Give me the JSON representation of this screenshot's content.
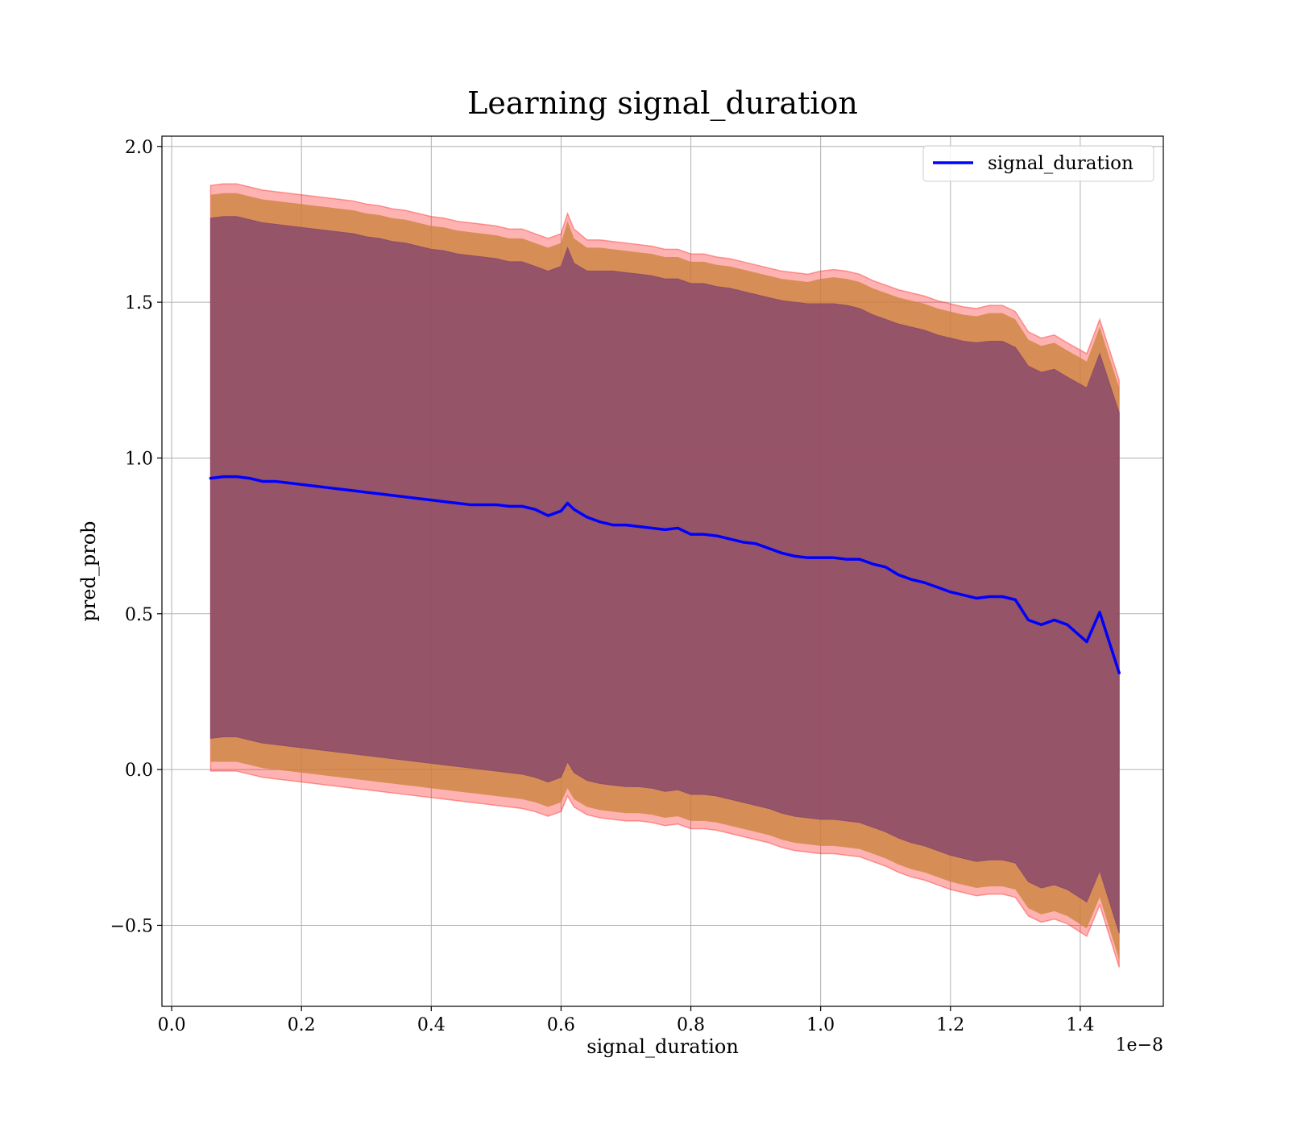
{
  "chart_data": {
    "type": "line",
    "title": "Learning signal_duration",
    "xlabel": "signal_duration",
    "ylabel": "pred_prob",
    "x_offset_label": "1e−8",
    "xlim": [
      -1.5e-10,
      1.528e-08
    ],
    "ylim": [
      -0.76,
      2.033
    ],
    "x_ticks": [
      0,
      2e-09,
      4e-09,
      6e-09,
      8e-09,
      1e-08,
      1.2e-08,
      1.4e-08
    ],
    "x_tick_labels": [
      "0.0",
      "0.2",
      "0.4",
      "0.6",
      "0.8",
      "1.0",
      "1.2",
      "1.4"
    ],
    "y_ticks": [
      -0.5,
      0.0,
      0.5,
      1.0,
      1.5,
      2.0
    ],
    "y_tick_labels": [
      "−0.5",
      "0.0",
      "0.5",
      "1.0",
      "1.5",
      "2.0"
    ],
    "grid": true,
    "legend": {
      "position": "top-right"
    },
    "colors": {
      "line": "#0000ff",
      "outer_band": "#ff0000",
      "mid_band": "#cd853f",
      "inner_band": "#8b4a6b"
    },
    "series": [
      {
        "name": "signal_duration",
        "x": [
          6e-10,
          8e-10,
          1e-09,
          1.2e-09,
          1.4e-09,
          1.6e-09,
          1.8e-09,
          2e-09,
          2.2e-09,
          2.4e-09,
          2.6e-09,
          2.8e-09,
          3e-09,
          3.2e-09,
          3.4e-09,
          3.6e-09,
          3.8e-09,
          4e-09,
          4.2e-09,
          4.4e-09,
          4.6e-09,
          4.8e-09,
          5e-09,
          5.2e-09,
          5.4e-09,
          5.6e-09,
          5.8e-09,
          6e-09,
          6.1e-09,
          6.2e-09,
          6.4e-09,
          6.6e-09,
          6.8e-09,
          7e-09,
          7.2e-09,
          7.4e-09,
          7.6e-09,
          7.8e-09,
          8e-09,
          8.2e-09,
          8.4e-09,
          8.6e-09,
          8.8e-09,
          9e-09,
          9.2e-09,
          9.4e-09,
          9.6e-09,
          9.8e-09,
          1e-08,
          1.02e-08,
          1.04e-08,
          1.06e-08,
          1.08e-08,
          1.1e-08,
          1.12e-08,
          1.14e-08,
          1.16e-08,
          1.18e-08,
          1.2e-08,
          1.22e-08,
          1.24e-08,
          1.26e-08,
          1.28e-08,
          1.3e-08,
          1.32e-08,
          1.34e-08,
          1.36e-08,
          1.38e-08,
          1.41e-08,
          1.43e-08,
          1.46e-08
        ],
        "y": [
          0.935,
          0.94,
          0.94,
          0.935,
          0.925,
          0.925,
          0.92,
          0.915,
          0.91,
          0.905,
          0.9,
          0.895,
          0.89,
          0.885,
          0.88,
          0.875,
          0.87,
          0.865,
          0.86,
          0.855,
          0.85,
          0.85,
          0.85,
          0.845,
          0.845,
          0.835,
          0.815,
          0.83,
          0.855,
          0.835,
          0.81,
          0.795,
          0.785,
          0.785,
          0.78,
          0.775,
          0.77,
          0.775,
          0.755,
          0.755,
          0.75,
          0.74,
          0.73,
          0.725,
          0.71,
          0.695,
          0.685,
          0.68,
          0.68,
          0.68,
          0.675,
          0.675,
          0.66,
          0.65,
          0.625,
          0.61,
          0.6,
          0.585,
          0.57,
          0.56,
          0.55,
          0.555,
          0.555,
          0.545,
          0.48,
          0.465,
          0.48,
          0.465,
          0.41,
          0.505,
          0.31
        ],
        "outer_upper": [
          1.875,
          1.88,
          1.88,
          1.87,
          1.86,
          1.855,
          1.85,
          1.845,
          1.84,
          1.835,
          1.83,
          1.825,
          1.815,
          1.81,
          1.8,
          1.795,
          1.785,
          1.775,
          1.77,
          1.76,
          1.755,
          1.75,
          1.745,
          1.735,
          1.735,
          1.72,
          1.705,
          1.72,
          1.785,
          1.735,
          1.7,
          1.7,
          1.695,
          1.69,
          1.685,
          1.68,
          1.67,
          1.67,
          1.655,
          1.655,
          1.645,
          1.64,
          1.63,
          1.62,
          1.61,
          1.6,
          1.595,
          1.59,
          1.6,
          1.605,
          1.6,
          1.59,
          1.57,
          1.555,
          1.54,
          1.53,
          1.52,
          1.505,
          1.495,
          1.485,
          1.48,
          1.49,
          1.49,
          1.47,
          1.405,
          1.385,
          1.395,
          1.37,
          1.335,
          1.445,
          1.25
        ],
        "outer_lower": [
          -0.005,
          -0.005,
          -0.005,
          -0.015,
          -0.025,
          -0.03,
          -0.035,
          -0.04,
          -0.045,
          -0.05,
          -0.055,
          -0.06,
          -0.065,
          -0.07,
          -0.075,
          -0.08,
          -0.085,
          -0.09,
          -0.095,
          -0.1,
          -0.105,
          -0.11,
          -0.115,
          -0.12,
          -0.125,
          -0.135,
          -0.15,
          -0.135,
          -0.085,
          -0.12,
          -0.145,
          -0.155,
          -0.16,
          -0.165,
          -0.165,
          -0.17,
          -0.18,
          -0.175,
          -0.19,
          -0.19,
          -0.195,
          -0.205,
          -0.215,
          -0.225,
          -0.235,
          -0.25,
          -0.26,
          -0.265,
          -0.27,
          -0.27,
          -0.275,
          -0.28,
          -0.295,
          -0.31,
          -0.33,
          -0.345,
          -0.355,
          -0.37,
          -0.385,
          -0.395,
          -0.405,
          -0.4,
          -0.4,
          -0.41,
          -0.47,
          -0.49,
          -0.48,
          -0.495,
          -0.535,
          -0.435,
          -0.635
        ],
        "mid_upper": [
          1.845,
          1.85,
          1.85,
          1.84,
          1.83,
          1.825,
          1.82,
          1.815,
          1.81,
          1.805,
          1.8,
          1.795,
          1.785,
          1.78,
          1.77,
          1.765,
          1.755,
          1.745,
          1.74,
          1.73,
          1.725,
          1.72,
          1.715,
          1.705,
          1.705,
          1.69,
          1.675,
          1.69,
          1.76,
          1.705,
          1.675,
          1.675,
          1.67,
          1.665,
          1.66,
          1.655,
          1.645,
          1.645,
          1.63,
          1.63,
          1.62,
          1.615,
          1.605,
          1.595,
          1.585,
          1.575,
          1.57,
          1.565,
          1.575,
          1.58,
          1.575,
          1.565,
          1.545,
          1.53,
          1.515,
          1.505,
          1.495,
          1.48,
          1.47,
          1.46,
          1.455,
          1.465,
          1.465,
          1.445,
          1.38,
          1.36,
          1.37,
          1.345,
          1.31,
          1.42,
          1.225
        ],
        "mid_lower": [
          0.025,
          0.025,
          0.025,
          0.015,
          0.005,
          0.0,
          -0.005,
          -0.01,
          -0.015,
          -0.02,
          -0.025,
          -0.03,
          -0.035,
          -0.04,
          -0.045,
          -0.05,
          -0.055,
          -0.06,
          -0.065,
          -0.07,
          -0.075,
          -0.08,
          -0.085,
          -0.09,
          -0.095,
          -0.105,
          -0.12,
          -0.105,
          -0.06,
          -0.095,
          -0.12,
          -0.13,
          -0.135,
          -0.14,
          -0.14,
          -0.145,
          -0.155,
          -0.15,
          -0.165,
          -0.165,
          -0.17,
          -0.18,
          -0.19,
          -0.2,
          -0.21,
          -0.225,
          -0.235,
          -0.24,
          -0.245,
          -0.245,
          -0.25,
          -0.255,
          -0.27,
          -0.285,
          -0.305,
          -0.32,
          -0.33,
          -0.345,
          -0.36,
          -0.37,
          -0.38,
          -0.375,
          -0.375,
          -0.385,
          -0.445,
          -0.465,
          -0.455,
          -0.47,
          -0.51,
          -0.41,
          -0.61
        ],
        "inner_upper": [
          1.77,
          1.775,
          1.775,
          1.765,
          1.755,
          1.75,
          1.745,
          1.74,
          1.735,
          1.73,
          1.725,
          1.72,
          1.71,
          1.705,
          1.695,
          1.69,
          1.68,
          1.67,
          1.665,
          1.655,
          1.65,
          1.645,
          1.64,
          1.63,
          1.63,
          1.615,
          1.6,
          1.615,
          1.675,
          1.625,
          1.6,
          1.6,
          1.6,
          1.595,
          1.59,
          1.585,
          1.575,
          1.575,
          1.56,
          1.56,
          1.55,
          1.545,
          1.535,
          1.525,
          1.515,
          1.505,
          1.5,
          1.495,
          1.495,
          1.495,
          1.49,
          1.48,
          1.46,
          1.445,
          1.43,
          1.42,
          1.41,
          1.395,
          1.385,
          1.375,
          1.37,
          1.375,
          1.375,
          1.355,
          1.295,
          1.275,
          1.285,
          1.26,
          1.225,
          1.335,
          1.145
        ],
        "inner_lower": [
          0.1,
          0.105,
          0.105,
          0.095,
          0.085,
          0.08,
          0.075,
          0.07,
          0.065,
          0.06,
          0.055,
          0.05,
          0.045,
          0.04,
          0.035,
          0.03,
          0.025,
          0.02,
          0.015,
          0.01,
          0.005,
          0.0,
          -0.005,
          -0.01,
          -0.015,
          -0.025,
          -0.04,
          -0.025,
          0.025,
          -0.01,
          -0.035,
          -0.045,
          -0.05,
          -0.055,
          -0.055,
          -0.06,
          -0.07,
          -0.065,
          -0.08,
          -0.08,
          -0.085,
          -0.095,
          -0.105,
          -0.115,
          -0.125,
          -0.14,
          -0.15,
          -0.155,
          -0.16,
          -0.16,
          -0.165,
          -0.17,
          -0.185,
          -0.2,
          -0.22,
          -0.235,
          -0.245,
          -0.26,
          -0.275,
          -0.285,
          -0.295,
          -0.29,
          -0.29,
          -0.3,
          -0.36,
          -0.38,
          -0.37,
          -0.385,
          -0.425,
          -0.325,
          -0.525
        ]
      }
    ]
  }
}
